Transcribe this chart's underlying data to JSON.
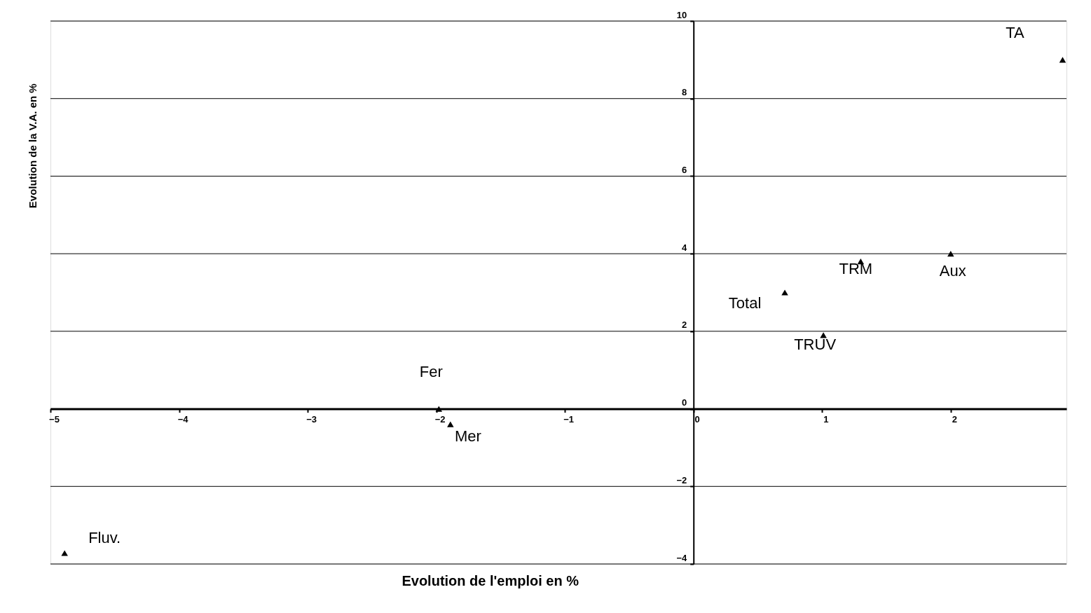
{
  "chart_data": {
    "type": "scatter",
    "xlabel": "Evolution de l'emploi en %",
    "ylabel": "Evolution de la V.A. en %",
    "xlim": [
      -5,
      2.9
    ],
    "ylim": [
      -4,
      10
    ],
    "xticks": [
      -5,
      -4,
      -3,
      -2,
      -1,
      0,
      1,
      2
    ],
    "yticks": [
      -4,
      -2,
      0,
      2,
      4,
      6,
      8,
      10
    ],
    "grid": "y",
    "marker": "triangle",
    "series": [
      {
        "name": "Fluv.",
        "color": "#000000",
        "x": [
          -4.89
        ],
        "values": [
          -3.72
        ]
      },
      {
        "name": "Fer",
        "color": "#000000",
        "x": [
          -1.98
        ],
        "values": [
          0
        ]
      },
      {
        "name": "Mer",
        "color": "#000000",
        "x": [
          -1.89
        ],
        "values": [
          -0.4
        ]
      },
      {
        "name": "Total",
        "color": "#000000",
        "x": [
          0.71
        ],
        "values": [
          3.0
        ]
      },
      {
        "name": "TRUV",
        "color": "#000000",
        "x": [
          1.01
        ],
        "values": [
          1.9
        ]
      },
      {
        "name": "TRM",
        "color": "#000000",
        "x": [
          1.3
        ],
        "values": [
          3.8
        ]
      },
      {
        "name": "Aux",
        "color": "#000000",
        "x": [
          2.0
        ],
        "values": [
          4.0
        ]
      },
      {
        "name": "TA",
        "color": "#000000",
        "x": [
          2.87
        ],
        "values": [
          9.0
        ]
      }
    ]
  }
}
